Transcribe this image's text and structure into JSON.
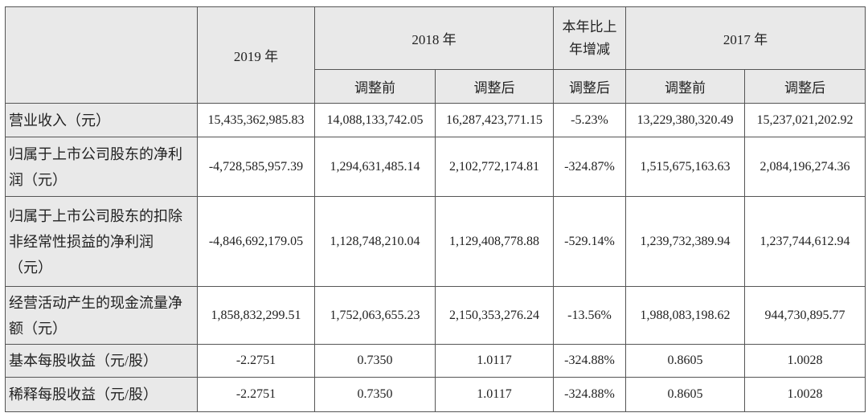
{
  "columns": {
    "y2019": "2019 年",
    "y2018": "2018 年",
    "change": "本年比上年增减",
    "y2017": "2017 年",
    "sub": [
      "调整前",
      "调整后",
      "调整后",
      "调整前",
      "调整后"
    ]
  },
  "rows": [
    [
      "营业收入（元）",
      "15,435,362,985.83",
      "14,088,133,742.05",
      "16,287,423,771.15",
      "-5.23%",
      "13,229,380,320.49",
      "15,237,021,202.92"
    ],
    [
      "归属于上市公司股东的净利润（元）",
      "-4,728,585,957.39",
      "1,294,631,485.14",
      "2,102,772,174.81",
      "-324.87%",
      "1,515,675,163.63",
      "2,084,196,274.36"
    ],
    [
      "归属于上市公司股东的扣除非经常性损益的净利润（元）",
      "-4,846,692,179.05",
      "1,128,748,210.04",
      "1,129,408,778.88",
      "-529.14%",
      "1,239,732,389.94",
      "1,237,744,612.94"
    ],
    [
      "经营活动产生的现金流量净额（元）",
      "1,858,832,299.51",
      "1,752,063,655.23",
      "2,150,353,276.24",
      "-13.56%",
      "1,988,083,198.62",
      "944,730,895.77"
    ],
    [
      "基本每股收益（元/股）",
      "-2.2751",
      "0.7350",
      "1.0117",
      "-324.88%",
      "0.8605",
      "1.0028"
    ],
    [
      "稀释每股收益（元/股）",
      "-2.2751",
      "0.7350",
      "1.0117",
      "-324.88%",
      "0.8605",
      "1.0028"
    ]
  ]
}
